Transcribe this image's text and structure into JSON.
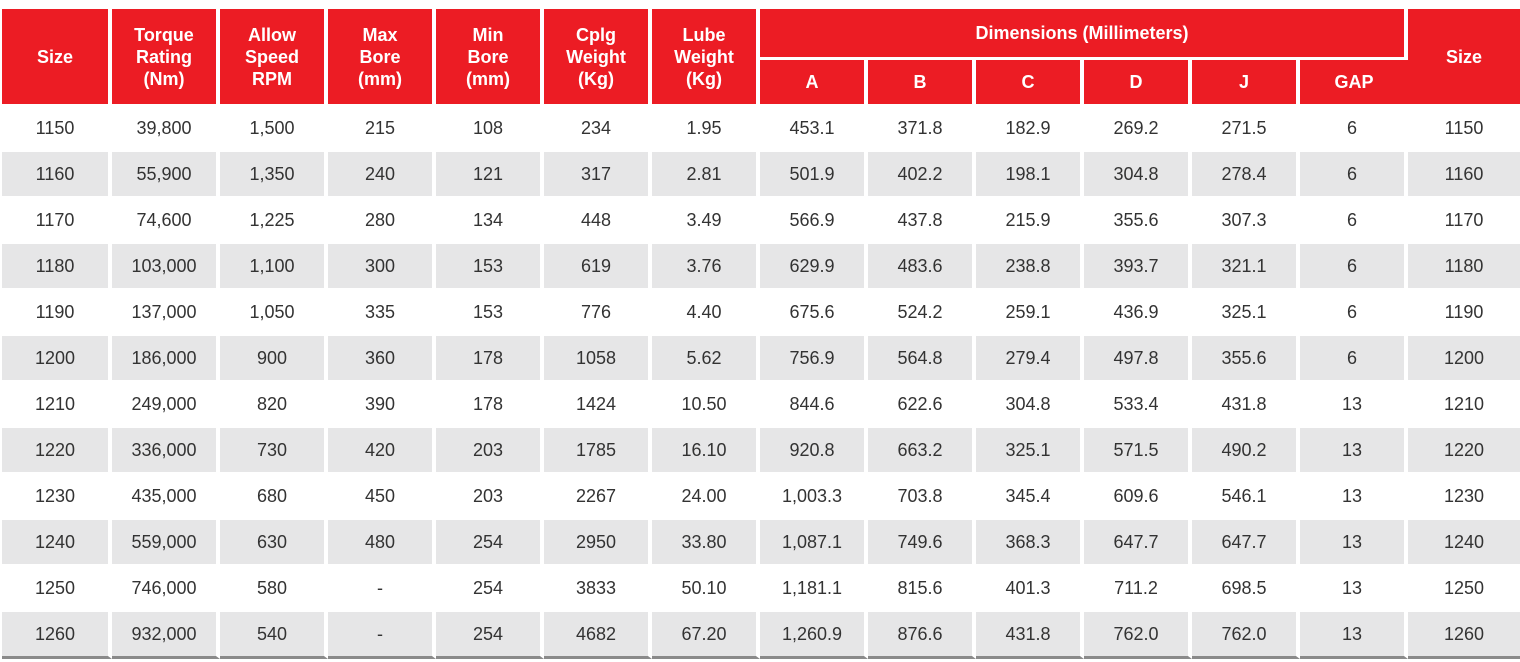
{
  "headers": {
    "size_left": "Size",
    "torque": [
      "Torque",
      "Rating",
      "(Nm)"
    ],
    "speed": [
      "Allow",
      "Speed",
      "RPM"
    ],
    "max_bore": [
      "Max",
      "Bore",
      "(mm)"
    ],
    "min_bore": [
      "Min",
      "Bore",
      "(mm)"
    ],
    "cplg_weight": [
      "Cplg",
      "Weight",
      "(Kg)"
    ],
    "lube_weight": [
      "Lube",
      "Weight",
      "(Kg)"
    ],
    "dimensions": "Dimensions (Millimeters)",
    "dim_cols": [
      "A",
      "B",
      "C",
      "D",
      "J",
      "GAP"
    ],
    "size_right": "Size"
  },
  "rows": [
    [
      "1150",
      "39,800",
      "1,500",
      "215",
      "108",
      "234",
      "1.95",
      "453.1",
      "371.8",
      "182.9",
      "269.2",
      "271.5",
      "6",
      "1150"
    ],
    [
      "1160",
      "55,900",
      "1,350",
      "240",
      "121",
      "317",
      "2.81",
      "501.9",
      "402.2",
      "198.1",
      "304.8",
      "278.4",
      "6",
      "1160"
    ],
    [
      "1170",
      "74,600",
      "1,225",
      "280",
      "134",
      "448",
      "3.49",
      "566.9",
      "437.8",
      "215.9",
      "355.6",
      "307.3",
      "6",
      "1170"
    ],
    [
      "1180",
      "103,000",
      "1,100",
      "300",
      "153",
      "619",
      "3.76",
      "629.9",
      "483.6",
      "238.8",
      "393.7",
      "321.1",
      "6",
      "1180"
    ],
    [
      "1190",
      "137,000",
      "1,050",
      "335",
      "153",
      "776",
      "4.40",
      "675.6",
      "524.2",
      "259.1",
      "436.9",
      "325.1",
      "6",
      "1190"
    ],
    [
      "1200",
      "186,000",
      "900",
      "360",
      "178",
      "1058",
      "5.62",
      "756.9",
      "564.8",
      "279.4",
      "497.8",
      "355.6",
      "6",
      "1200"
    ],
    [
      "1210",
      "249,000",
      "820",
      "390",
      "178",
      "1424",
      "10.50",
      "844.6",
      "622.6",
      "304.8",
      "533.4",
      "431.8",
      "13",
      "1210"
    ],
    [
      "1220",
      "336,000",
      "730",
      "420",
      "203",
      "1785",
      "16.10",
      "920.8",
      "663.2",
      "325.1",
      "571.5",
      "490.2",
      "13",
      "1220"
    ],
    [
      "1230",
      "435,000",
      "680",
      "450",
      "203",
      "2267",
      "24.00",
      "1,003.3",
      "703.8",
      "345.4",
      "609.6",
      "546.1",
      "13",
      "1230"
    ],
    [
      "1240",
      "559,000",
      "630",
      "480",
      "254",
      "2950",
      "33.80",
      "1,087.1",
      "749.6",
      "368.3",
      "647.7",
      "647.7",
      "13",
      "1240"
    ],
    [
      "1250",
      "746,000",
      "580",
      "-",
      "254",
      "3833",
      "50.10",
      "1,181.1",
      "815.6",
      "401.3",
      "711.2",
      "698.5",
      "13",
      "1250"
    ],
    [
      "1260",
      "932,000",
      "540",
      "-",
      "254",
      "4682",
      "67.20",
      "1,260.9",
      "876.6",
      "431.8",
      "762.0",
      "762.0",
      "13",
      "1260"
    ]
  ],
  "colors": {
    "header_red": "#ec1c24",
    "stripe_gray": "#e6e6e7",
    "text": "#333333"
  }
}
